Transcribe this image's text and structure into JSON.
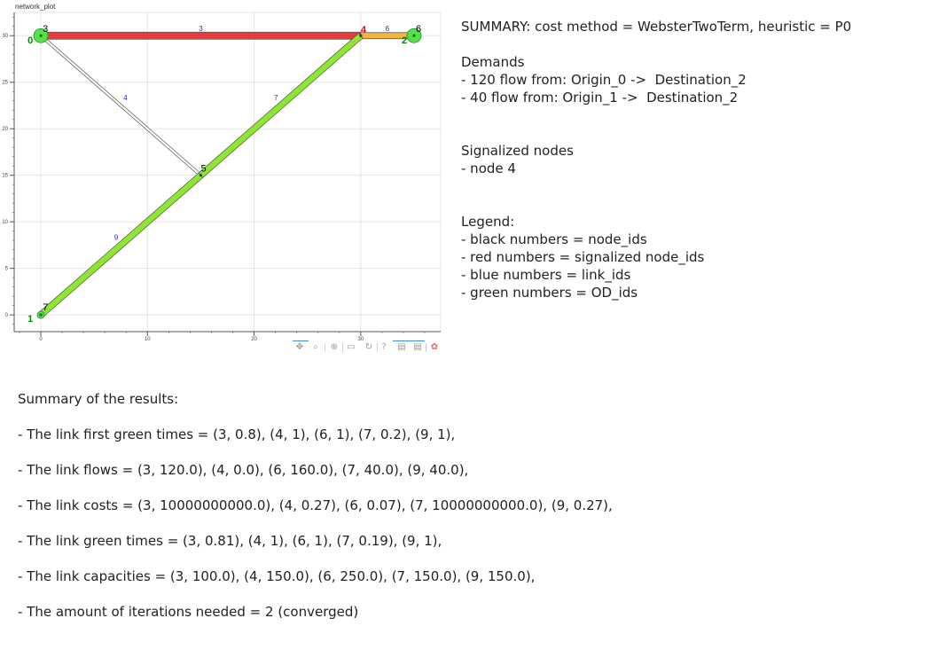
{
  "plot": {
    "title": "network_plot",
    "x_ticks": [
      "0",
      "10",
      "20",
      "30"
    ],
    "y_ticks": [
      "0",
      "5",
      "10",
      "15",
      "20",
      "25",
      "30"
    ],
    "xlim": [
      -2.5,
      37.5
    ],
    "ylim": [
      -1.8,
      32.5
    ],
    "nodes": [
      {
        "id": "0",
        "x": 0,
        "y": 30,
        "label_color": "#000000"
      },
      {
        "id": "1",
        "x": 0,
        "y": 0,
        "label_color": "#000000"
      },
      {
        "id": "2",
        "x": 35,
        "y": 30,
        "label_color": "#000000"
      },
      {
        "id": "3",
        "x": 0,
        "y": 30,
        "label_color": "#000000"
      },
      {
        "id": "4",
        "x": 30,
        "y": 30,
        "label_color": "#ee0000"
      },
      {
        "id": "5",
        "x": 15,
        "y": 15,
        "label_color": "#000000"
      },
      {
        "id": "6",
        "x": 35,
        "y": 30,
        "label_color": "#000000"
      },
      {
        "id": "7",
        "x": 0,
        "y": 0,
        "label_color": "#000000"
      }
    ],
    "od_labels": [
      {
        "id": "0",
        "x": 0,
        "y": 30
      },
      {
        "id": "1",
        "x": 0,
        "y": 0
      },
      {
        "id": "2",
        "x": 35,
        "y": 30
      }
    ],
    "links": [
      {
        "id": "3",
        "from": "3",
        "to": "4",
        "color": "#e83c3c",
        "fill_level": 1.0
      },
      {
        "id": "4",
        "from": "3",
        "to": "5",
        "color": "#ffffff",
        "fill_level": 0.0
      },
      {
        "id": "6",
        "from": "4",
        "to": "6",
        "color": "#f5b53a",
        "fill_level": 0.6
      },
      {
        "id": "7",
        "from": "5",
        "to": "4",
        "color": "#8ee62e",
        "fill_level": 0.3
      },
      {
        "id": "9",
        "from": "7",
        "to": "5",
        "color": "#8ee62e",
        "fill_level": 0.3
      }
    ],
    "colors": {
      "node_id": "#000000",
      "signalized_node_id": "#ee0000",
      "link_id": "#1f1fd6",
      "od_id": "#008800",
      "od_marker": "#55e04a"
    }
  },
  "toolbar": {
    "tools": [
      {
        "name": "pan-icon",
        "glyph": "✥"
      },
      {
        "name": "box-zoom-icon",
        "glyph": "⌕"
      },
      {
        "name": "zoom-in-icon",
        "glyph": "⊕"
      },
      {
        "name": "save-icon",
        "glyph": "▭"
      },
      {
        "name": "reset-icon",
        "glyph": "↻"
      },
      {
        "name": "help-icon",
        "glyph": "?"
      },
      {
        "name": "hover-tooltip-icon",
        "glyph": "▤"
      },
      {
        "name": "hover-tooltip-icon-2",
        "glyph": "▤"
      },
      {
        "name": "bokeh-logo-icon",
        "glyph": "✿"
      }
    ]
  },
  "summary": {
    "lines": [
      "SUMMARY: cost method = WebsterTwoTerm, heuristic = P0",
      "",
      "Demands",
      "- 120 flow from: Origin_0 ->  Destination_2",
      "- 40 flow from: Origin_1 ->  Destination_2",
      "",
      "",
      "Signalized nodes",
      "- node 4",
      "",
      "",
      "Legend:",
      "- black numbers = node_ids",
      "- red numbers = signalized node_ids",
      "- blue numbers = link_ids",
      "- green numbers = OD_ids"
    ]
  },
  "results": {
    "lines": [
      "Summary of the results:",
      "- The link first green times = (3, 0.8), (4, 1), (6, 1), (7, 0.2), (9, 1),",
      "- The link flows = (3, 120.0), (4, 0.0), (6, 160.0), (7, 40.0), (9, 40.0),",
      "- The link costs = (3, 10000000000.0), (4, 0.27), (6, 0.07), (7, 10000000000.0), (9, 0.27),",
      "- The link green times = (3, 0.81), (4, 1), (6, 1), (7, 0.19), (9, 1),",
      "- The link capacities = (3, 100.0), (4, 150.0), (6, 250.0), (7, 150.0), (9, 150.0),",
      "- The amount of iterations needed = 2 (converged)"
    ]
  }
}
